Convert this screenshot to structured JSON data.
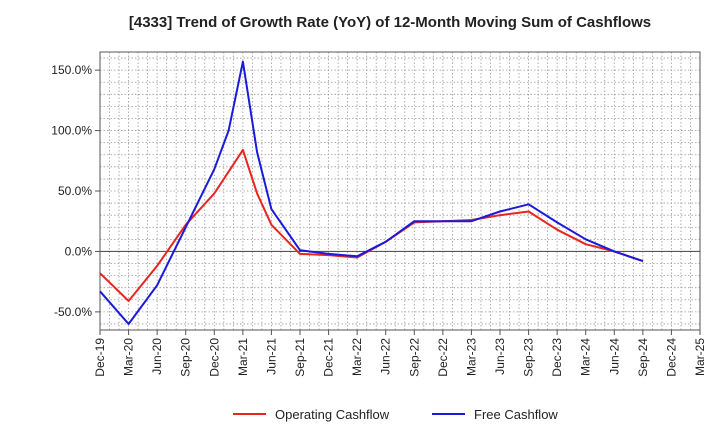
{
  "chart_data": {
    "type": "line",
    "title": "[4333]  Trend of Growth Rate (YoY) of 12-Month Moving Sum of Cashflows",
    "xlabel": "",
    "ylabel": "",
    "ylim": [
      -65,
      165
    ],
    "y_ticks": [
      -50,
      0,
      50,
      100,
      150
    ],
    "y_tick_labels": [
      "-50.0%",
      "0.0%",
      "50.0%",
      "100.0%",
      "150.0%"
    ],
    "categories": [
      "Dec-19",
      "Mar-20",
      "Jun-20",
      "Sep-20",
      "Dec-20",
      "Mar-21",
      "Jun-21",
      "Sep-21",
      "Dec-21",
      "Mar-22",
      "Jun-22",
      "Sep-22",
      "Dec-22",
      "Mar-23",
      "Jun-23",
      "Sep-23",
      "Dec-23",
      "Mar-24",
      "Jun-24",
      "Sep-24",
      "Dec-24",
      "Mar-25"
    ],
    "grid": true,
    "legend_position": "bottom",
    "series": [
      {
        "name": "Operating Cashflow",
        "color": "#e8251f",
        "points": [
          [
            0,
            -18
          ],
          [
            1,
            -41
          ],
          [
            2,
            -12
          ],
          [
            3,
            22
          ],
          [
            4,
            48
          ],
          [
            5,
            84
          ],
          [
            5.5,
            48
          ],
          [
            6,
            22
          ],
          [
            7,
            -2
          ],
          [
            8,
            -3
          ],
          [
            9,
            -5
          ],
          [
            10,
            8
          ],
          [
            11,
            24
          ],
          [
            12,
            25
          ],
          [
            13,
            26
          ],
          [
            14,
            30
          ],
          [
            15,
            33
          ],
          [
            16,
            18
          ],
          [
            17,
            6
          ],
          [
            18,
            0
          ],
          [
            19,
            -8
          ]
        ]
      },
      {
        "name": "Free Cashflow",
        "color": "#1a1ad9",
        "points": [
          [
            0,
            -33
          ],
          [
            1,
            -60
          ],
          [
            2,
            -28
          ],
          [
            3,
            20
          ],
          [
            4,
            68
          ],
          [
            4.5,
            100
          ],
          [
            5,
            157
          ],
          [
            5.5,
            82
          ],
          [
            6,
            35
          ],
          [
            7,
            1
          ],
          [
            8,
            -2
          ],
          [
            9,
            -4
          ],
          [
            10,
            8
          ],
          [
            11,
            25
          ],
          [
            12,
            25
          ],
          [
            13,
            25
          ],
          [
            14,
            33
          ],
          [
            15,
            39
          ],
          [
            16,
            24
          ],
          [
            17,
            10
          ],
          [
            18,
            0
          ],
          [
            19,
            -8
          ]
        ]
      }
    ]
  }
}
